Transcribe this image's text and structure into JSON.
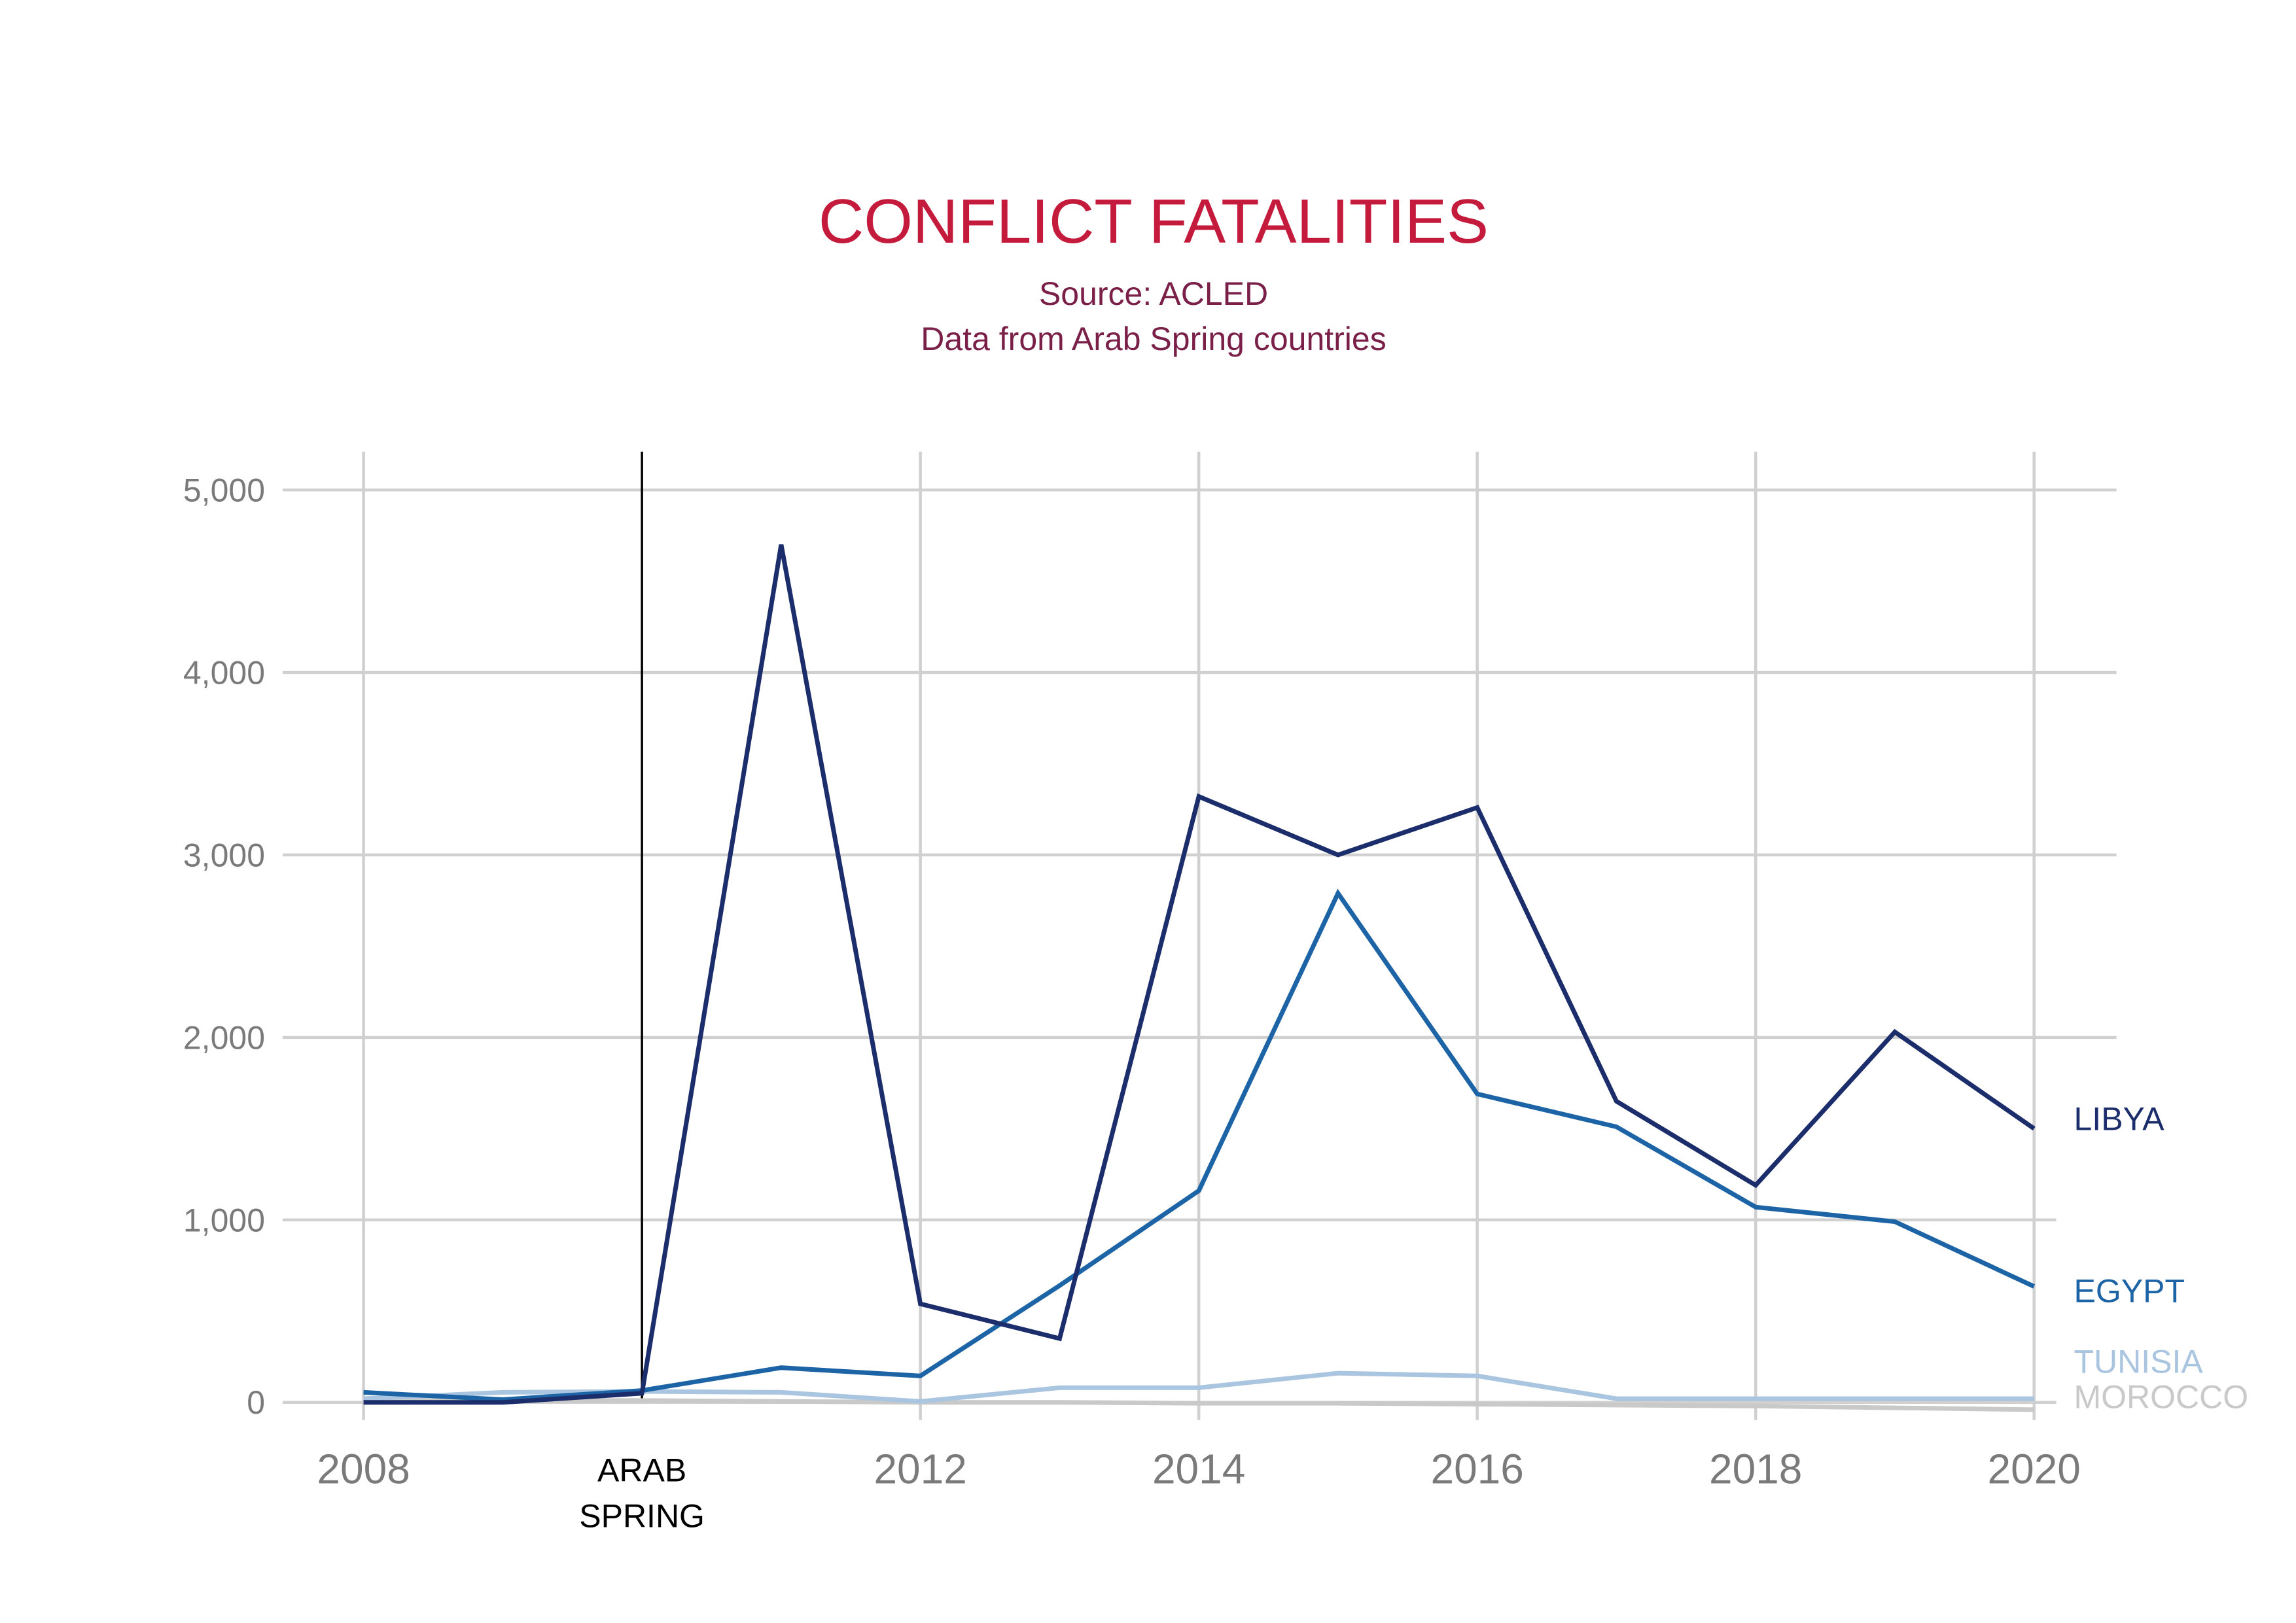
{
  "chart_data": {
    "type": "line",
    "title": "CONFLICT FATALITIES",
    "subtitle": [
      "Source: ACLED",
      "Data from Arab Spring countries"
    ],
    "xlabel": "",
    "ylabel": "",
    "x": [
      2008,
      2009,
      2010,
      2011,
      2012,
      2013,
      2014,
      2015,
      2016,
      2017,
      2018,
      2019,
      2020
    ],
    "xlim": [
      2008,
      2020
    ],
    "ylim": [
      0,
      5000
    ],
    "xticks": [
      2008,
      2010,
      2012,
      2014,
      2016,
      2018,
      2020
    ],
    "xtick_labels": [
      "2008",
      [
        "ARAB",
        "SPRING"
      ],
      "2012",
      "2014",
      "2016",
      "2018",
      "2020"
    ],
    "yticks": [
      0,
      1000,
      2000,
      3000,
      4000,
      5000
    ],
    "ytick_labels": [
      "0",
      "1,000",
      "2,000",
      "3,000",
      "4,000",
      "5,000"
    ],
    "grid": true,
    "legend": "right",
    "vertical_lines": [
      {
        "x": 2010,
        "color": "#000000"
      }
    ],
    "series": [
      {
        "name": "LIBYA",
        "color": "#1b2d6b",
        "values": [
          0,
          0,
          50,
          4700,
          540,
          350,
          3320,
          3000,
          3260,
          1650,
          1190,
          2030,
          1500
        ]
      },
      {
        "name": "EGYPT",
        "color": "#1d64a6",
        "values": [
          55,
          15,
          65,
          190,
          145,
          640,
          1160,
          2790,
          1690,
          1510,
          1070,
          990,
          635
        ]
      },
      {
        "name": "TUNISIA",
        "color": "#a9c5df",
        "values": [
          20,
          55,
          60,
          55,
          5,
          80,
          80,
          160,
          145,
          20,
          20,
          20,
          20
        ]
      },
      {
        "name": "MOROCCO",
        "color": "#c9c9c9",
        "values": [
          10,
          10,
          10,
          5,
          0,
          0,
          -5,
          -5,
          -10,
          -15,
          -20,
          -30,
          -40
        ]
      }
    ]
  },
  "colors": {
    "title": "#c41a3b",
    "subtitle": "#7a2048",
    "tick_label": "#7a7a7a",
    "grid": "#d0d0d0",
    "background": "#ffffff"
  }
}
